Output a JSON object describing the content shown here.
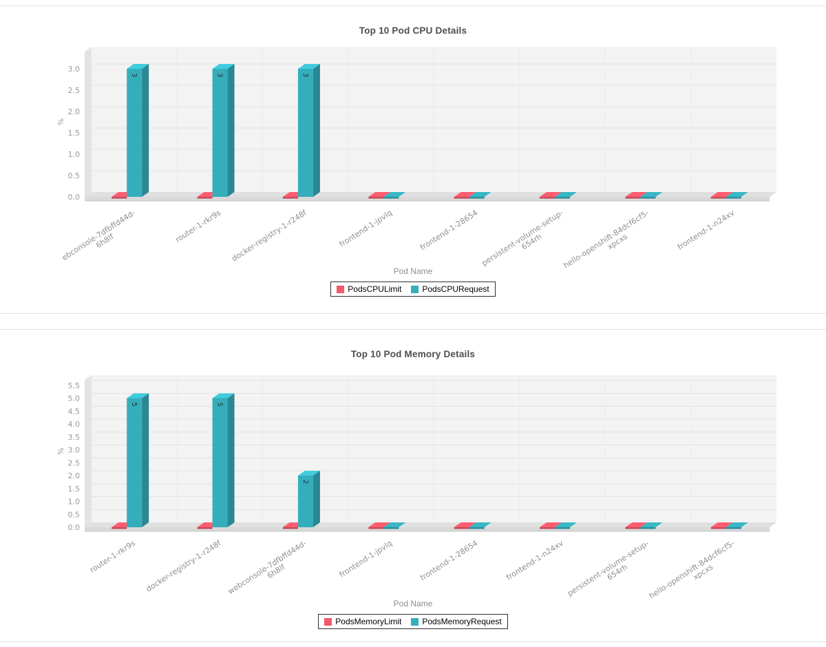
{
  "chart_data": [
    {
      "type": "bar",
      "title": "Top 10 Pod CPU Details",
      "xlabel": "Pod Name",
      "ylabel": "%",
      "ylim": [
        0,
        3.0
      ],
      "ytick_step": 0.5,
      "grid": true,
      "legend_position": "bottom",
      "categories": [
        [
          "ebconsole-7dfbffd44d-",
          "6h8lf"
        ],
        [
          "router-1-rkr9s"
        ],
        [
          "docker-registry-1-r248f"
        ],
        [
          "frontend-1-jpvlq"
        ],
        [
          "frontend-1-28654"
        ],
        [
          "persistent-volume-setup-",
          "654rh"
        ],
        [
          "hello-openshift-84dcf6cf5-",
          "xpcxs"
        ],
        [
          "frontend-1-n24xv"
        ]
      ],
      "series": [
        {
          "name": "PodsCPULimit",
          "color": "#f2596b",
          "values": [
            0,
            0,
            0,
            0,
            0,
            0,
            0,
            0
          ]
        },
        {
          "name": "PodsCPURequest",
          "color": "#35aebc",
          "values": [
            3,
            3,
            3,
            0,
            0,
            0,
            0,
            0
          ]
        }
      ]
    },
    {
      "type": "bar",
      "title": "Top 10 Pod Memory Details",
      "xlabel": "Pod Name",
      "ylabel": "%",
      "ylim": [
        0,
        5.5
      ],
      "ytick_step": 0.5,
      "grid": true,
      "legend_position": "bottom",
      "categories": [
        [
          "router-1-rkr9s"
        ],
        [
          "docker-registry-1-r248f"
        ],
        [
          "webconsole-7dfbffd44d-",
          "6h8lf"
        ],
        [
          "frontend-1-jpvlq"
        ],
        [
          "frontend-1-28654"
        ],
        [
          "frontend-1-n24xv"
        ],
        [
          "persistent-volume-setup-",
          "654rh"
        ],
        [
          "hello-openshift-84dcf6cf5-",
          "xpcxs"
        ]
      ],
      "series": [
        {
          "name": "PodsMemoryLimit",
          "color": "#f2596b",
          "values": [
            0,
            0,
            0,
            0,
            0,
            0,
            0,
            0
          ]
        },
        {
          "name": "PodsMemoryRequest",
          "color": "#35aebc",
          "values": [
            5,
            5,
            2,
            0,
            0,
            0,
            0,
            0
          ]
        }
      ]
    }
  ]
}
